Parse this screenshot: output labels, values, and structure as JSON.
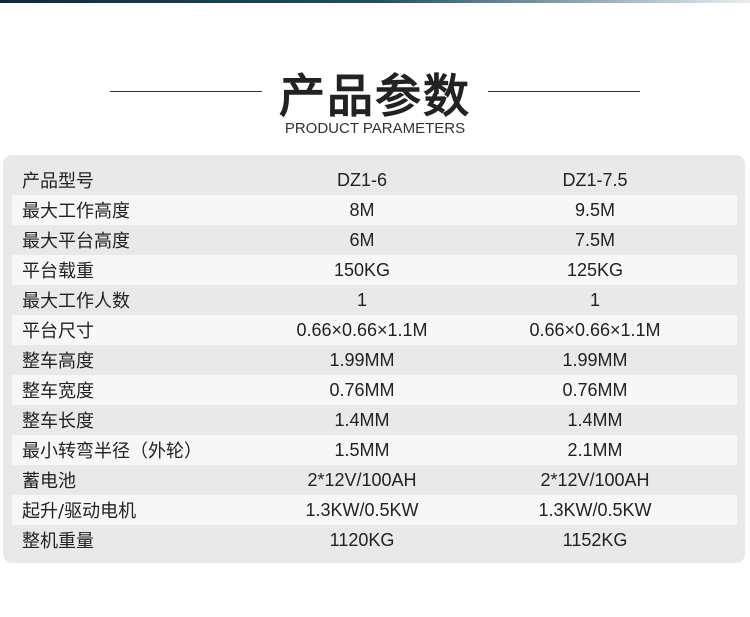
{
  "header": {
    "title": "产品参数",
    "subtitle": "PRODUCT PARAMETERS"
  },
  "rows": [
    {
      "label": "产品型号",
      "v1": "DZ1-6",
      "v2": "DZ1-7.5"
    },
    {
      "label": "最大工作高度",
      "v1": "8M",
      "v2": "9.5M"
    },
    {
      "label": "最大平台高度",
      "v1": "6M",
      "v2": "7.5M"
    },
    {
      "label": "平台载重",
      "v1": "150KG",
      "v2": "125KG"
    },
    {
      "label": "最大工作人数",
      "v1": "1",
      "v2": "1"
    },
    {
      "label": "平台尺寸",
      "v1": "0.66×0.66×1.1M",
      "v2": "0.66×0.66×1.1M"
    },
    {
      "label": "整车高度",
      "v1": "1.99MM",
      "v2": "1.99MM"
    },
    {
      "label": "整车宽度",
      "v1": "0.76MM",
      "v2": "0.76MM"
    },
    {
      "label": "整车长度",
      "v1": "1.4MM",
      "v2": "1.4MM"
    },
    {
      "label": "最小转弯半径（外轮）",
      "v1": "1.5MM",
      "v2": "2.1MM"
    },
    {
      "label": "蓄电池",
      "v1": "2*12V/100AH",
      "v2": "2*12V/100AH"
    },
    {
      "label": "起升/驱动电机",
      "v1": "1.3KW/0.5KW",
      "v2": "1.3KW/0.5KW"
    },
    {
      "label": "整机重量",
      "v1": "1120KG",
      "v2": "1152KG"
    }
  ]
}
